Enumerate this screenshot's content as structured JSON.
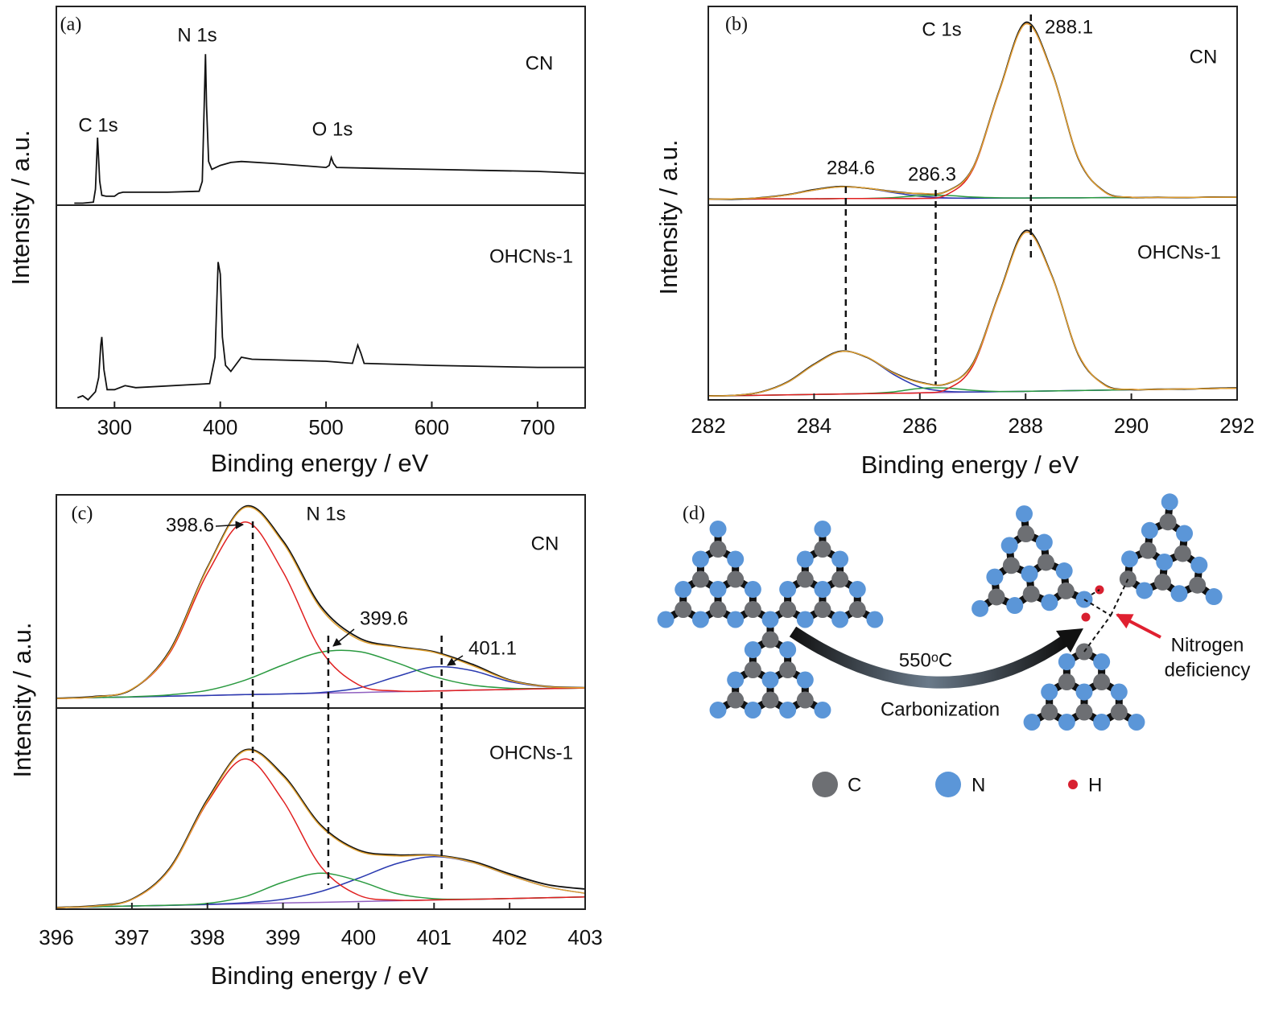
{
  "chart_data": [
    {
      "type": "line",
      "panel_label": "(a)",
      "xlabel": "Binding energy / eV",
      "ylabel": "Intensity / a.u.",
      "xlim": [
        245,
        745
      ],
      "xticks": [
        300,
        400,
        500,
        600,
        700
      ],
      "ylim": [
        0,
        100
      ],
      "annotations": [
        "C 1s",
        "N 1s",
        "O 1s"
      ],
      "subplots": [
        {
          "label": "CN",
          "x": [
            262,
            270,
            280,
            282,
            284,
            286,
            288,
            292,
            300,
            304,
            308,
            350,
            380,
            383,
            385,
            386,
            387,
            389,
            392,
            396,
            400,
            410,
            420,
            450,
            500,
            503,
            505,
            507,
            510,
            550,
            600,
            650,
            700,
            745
          ],
          "series": [
            {
              "color": "#111111",
              "values": [
                1,
                1,
                1.5,
                8,
                34,
                12,
                5,
                4.5,
                4.5,
                6,
                6.5,
                6.5,
                7,
                12,
                55,
                76,
                50,
                22,
                18,
                19,
                20,
                21.5,
                22,
                21,
                19,
                20,
                24,
                21,
                19,
                18.5,
                18,
                17.5,
                17,
                16
              ]
            }
          ]
        },
        {
          "label": "OHCNs-1",
          "x": [
            265,
            270,
            275,
            282,
            285,
            287,
            288,
            290,
            293,
            300,
            310,
            320,
            390,
            395,
            398,
            400,
            402,
            405,
            410,
            420,
            430,
            500,
            525,
            530,
            533,
            536,
            600,
            700,
            745
          ],
          "series": [
            {
              "color": "#111111",
              "values": [
                5,
                6,
                4,
                8,
                15,
                31,
                35,
                19,
                9,
                9,
                11,
                10,
                12,
                25,
                72,
                66,
                35,
                21,
                18,
                25,
                24,
                23,
                22,
                31,
                27,
                22,
                21,
                20,
                20
              ]
            }
          ]
        }
      ]
    },
    {
      "type": "line",
      "panel_label": "(b)",
      "xlabel": "Binding energy / eV",
      "ylabel": "Intensity / a.u.",
      "xlim": [
        282,
        292
      ],
      "xticks": [
        282,
        284,
        286,
        288,
        290,
        292
      ],
      "ylim": [
        0,
        100
      ],
      "annotations": [
        "C 1s"
      ],
      "peak_labels": [
        284.6,
        286.3,
        288.1
      ],
      "subplots": [
        {
          "label": "CN",
          "x": [
            282,
            282.5,
            283,
            283.5,
            284,
            284.5,
            285,
            285.5,
            286,
            286.5,
            287,
            287.5,
            288,
            288.5,
            289,
            289.5,
            290,
            290.5,
            291,
            291.5,
            292
          ],
          "series": [
            {
              "color": "#9060c0",
              "values": [
                3.0,
                3.1,
                3.1,
                3.2,
                3.2,
                3.3,
                3.3,
                3.4,
                3.4,
                3.5,
                3.5,
                3.6,
                3.6,
                3.7,
                3.7,
                3.8,
                3.8,
                3.9,
                3.9,
                4.0,
                4.0
              ]
            },
            {
              "color": "#2a3ab0",
              "values": [
                3.0,
                3.2,
                3.7,
                5.2,
                7.6,
                9.2,
                8.5,
                6.3,
                4.5,
                3.7,
                3.5,
                3.6,
                3.6,
                3.7,
                3.7,
                3.8,
                3.8,
                3.9,
                3.9,
                4.0,
                4.0
              ]
            },
            {
              "color": "#2a9a40",
              "values": [
                3.0,
                3.1,
                3.1,
                3.2,
                3.2,
                3.3,
                3.4,
                3.8,
                4.8,
                4.9,
                4.1,
                3.7,
                3.6,
                3.7,
                3.7,
                3.8,
                3.8,
                3.9,
                3.9,
                4.0,
                4.0
              ]
            },
            {
              "color": "#e02020",
              "values": [
                3.0,
                3.1,
                3.1,
                3.2,
                3.2,
                3.3,
                3.3,
                3.4,
                3.4,
                5.2,
                17.8,
                57.0,
                91.2,
                66.7,
                23.5,
                6.5,
                4.0,
                3.9,
                3.9,
                4.0,
                4.0
              ]
            },
            {
              "color": "#111111",
              "values": [
                3.1,
                3.0,
                3.8,
                5.3,
                7.8,
                9.4,
                8.5,
                6.9,
                5.8,
                6.9,
                18.6,
                57.5,
                92.0,
                67.0,
                23.2,
                6.7,
                3.9,
                4.0,
                3.8,
                4.1,
                4.0
              ]
            },
            {
              "color": "#e0a030",
              "values": [
                3.0,
                3.2,
                3.7,
                5.2,
                7.6,
                9.2,
                8.6,
                6.7,
                5.9,
                6.8,
                18.4,
                57.1,
                91.2,
                66.7,
                23.5,
                6.5,
                4.0,
                3.9,
                3.9,
                4.0,
                4.0
              ]
            }
          ]
        },
        {
          "label": "OHCNs-1",
          "x": [
            282,
            282.5,
            283,
            283.5,
            284,
            284.5,
            285,
            285.5,
            286,
            286.5,
            287,
            287.5,
            288,
            288.5,
            289,
            289.5,
            290,
            290.5,
            291,
            291.5,
            292
          ],
          "series": [
            {
              "color": "#9060c0",
              "values": [
                2.0,
                2.2,
                2.4,
                2.6,
                2.8,
                3.0,
                3.2,
                3.4,
                3.6,
                3.8,
                4.0,
                4.2,
                4.4,
                4.6,
                4.8,
                5.0,
                5.2,
                5.4,
                5.6,
                5.8,
                6.0
              ]
            },
            {
              "color": "#2a3ab0",
              "values": [
                2.0,
                2.4,
                4.0,
                9.0,
                18.0,
                24.8,
                21.9,
                13.1,
                6.6,
                4.4,
                4.1,
                4.2,
                4.4,
                4.6,
                4.8,
                5.0,
                5.2,
                5.4,
                5.6,
                5.8,
                6.0
              ]
            },
            {
              "color": "#2a9a40",
              "values": [
                2.0,
                2.2,
                2.4,
                2.6,
                2.8,
                3.0,
                3.3,
                4.1,
                5.9,
                6.1,
                4.9,
                4.3,
                4.4,
                4.6,
                4.8,
                5.0,
                5.2,
                5.4,
                5.6,
                5.8,
                6.0
              ]
            },
            {
              "color": "#e02020",
              "values": [
                2.0,
                2.2,
                2.4,
                2.6,
                2.8,
                3.0,
                3.2,
                3.4,
                3.6,
                5.4,
                17.3,
                54.0,
                86.1,
                63.3,
                23.3,
                7.5,
                5.4,
                5.4,
                5.6,
                5.8,
                6.0
              ]
            },
            {
              "color": "#111111",
              "values": [
                2.1,
                2.3,
                4.1,
                9.2,
                18.3,
                25.0,
                21.8,
                14.0,
                9.1,
                8.2,
                18.6,
                54.5,
                87.0,
                63.6,
                23.0,
                7.7,
                5.3,
                5.5,
                5.5,
                5.9,
                6.2
              ]
            },
            {
              "color": "#e0a030",
              "values": [
                2.0,
                2.4,
                4.0,
                9.0,
                18.0,
                24.8,
                22.0,
                13.8,
                8.9,
                8.3,
                18.3,
                54.1,
                86.1,
                63.3,
                23.3,
                7.5,
                5.4,
                5.4,
                5.6,
                5.8,
                6.0
              ]
            }
          ]
        }
      ]
    },
    {
      "type": "line",
      "panel_label": "(c)",
      "xlabel": "Binding energy / eV",
      "ylabel": "Intensity / a.u.",
      "xlim": [
        396,
        403
      ],
      "xticks": [
        396,
        397,
        398,
        399,
        400,
        401,
        402,
        403
      ],
      "ylim": [
        0,
        100
      ],
      "annotations": [
        "N 1s"
      ],
      "peak_labels": [
        398.6,
        399.6,
        401.1
      ],
      "subplots": [
        {
          "label": "CN",
          "x": [
            396,
            396.5,
            397,
            397.5,
            398,
            398.5,
            399,
            399.5,
            400,
            400.5,
            401,
            401.5,
            402,
            402.5,
            403
          ],
          "series": [
            {
              "color": "#9060c0",
              "values": [
                4.5,
                4.9,
                5.2,
                5.6,
                5.9,
                6.3,
                6.6,
                7.0,
                7.3,
                7.7,
                8.0,
                8.4,
                8.7,
                9.1,
                9.4
              ]
            },
            {
              "color": "#2a3ab0",
              "values": [
                4.5,
                4.9,
                5.2,
                5.6,
                5.9,
                6.3,
                6.6,
                7.3,
                9.4,
                14.7,
                19.3,
                17.6,
                12.4,
                9.9,
                9.5
              ]
            },
            {
              "color": "#2a9a40",
              "values": [
                4.5,
                4.9,
                5.3,
                6.2,
                8.3,
                13.1,
                20.2,
                26.2,
                26.5,
                21.3,
                14.8,
                10.8,
                9.3,
                9.2,
                9.4
              ]
            },
            {
              "color": "#e02020",
              "values": [
                4.5,
                5.2,
                8.8,
                25.8,
                63.2,
                87.3,
                63.9,
                27.2,
                10.9,
                8.0,
                8.0,
                8.4,
                8.7,
                9.1,
                9.4
              ]
            },
            {
              "color": "#111111",
              "values": [
                4.6,
                5.4,
                8.7,
                26.9,
                66.0,
                94.6,
                78.4,
                47.8,
                33.0,
                28.9,
                26.4,
                20.6,
                13.2,
                10.1,
                9.6
              ]
            },
            {
              "color": "#e0a030",
              "values": [
                4.5,
                5.2,
                8.9,
                26.4,
                65.6,
                94.1,
                77.5,
                46.7,
                32.2,
                28.6,
                26.1,
                20.0,
                13.0,
                10.0,
                9.5
              ]
            }
          ]
        },
        {
          "label": "OHCNs-1",
          "x": [
            396,
            396.5,
            397,
            397.5,
            398,
            398.5,
            399,
            399.5,
            400,
            400.5,
            401,
            401.5,
            402,
            402.5,
            403
          ],
          "series": [
            {
              "color": "#9060c0",
              "values": [
                0.8,
                1.2,
                1.6,
                1.9,
                2.3,
                2.7,
                3.1,
                3.4,
                3.8,
                4.2,
                4.6,
                4.9,
                5.3,
                5.7,
                6.1
              ]
            },
            {
              "color": "#2a3ab0",
              "values": [
                0.8,
                1.2,
                1.6,
                1.9,
                2.4,
                3.2,
                4.9,
                8.8,
                15.4,
                22.6,
                26.1,
                23.3,
                16.9,
                11.1,
                7.9
              ]
            },
            {
              "color": "#2a9a40",
              "values": [
                0.8,
                1.2,
                1.6,
                2.0,
                2.9,
                6.3,
                13.4,
                17.9,
                14.1,
                7.8,
                5.2,
                5.0,
                5.3,
                5.7,
                6.1
              ]
            },
            {
              "color": "#e02020",
              "values": [
                0.8,
                1.5,
                4.8,
                19.8,
                53.2,
                74.7,
                54.0,
                21.3,
                7.0,
                4.5,
                4.6,
                4.9,
                5.3,
                5.7,
                6.1
              ]
            },
            {
              "color": "#111111",
              "values": [
                0.9,
                1.7,
                5.0,
                20.4,
                54.6,
                79.2,
                66.8,
                41.9,
                29.4,
                27.0,
                26.9,
                23.9,
                17.6,
                12.2,
                10.0
              ]
            },
            {
              "color": "#e0a030",
              "values": [
                0.8,
                1.5,
                4.8,
                19.9,
                53.9,
                78.8,
                66.1,
                41.2,
                28.9,
                26.5,
                26.7,
                23.4,
                16.9,
                11.1,
                7.9
              ]
            }
          ]
        }
      ]
    }
  ],
  "diagram": {
    "label": "(d)",
    "condition": "550ᵒC",
    "process": "Carbonization",
    "annotation": [
      "Nitrogen",
      "deficiency"
    ],
    "legend": [
      "C",
      "N",
      "H"
    ]
  }
}
